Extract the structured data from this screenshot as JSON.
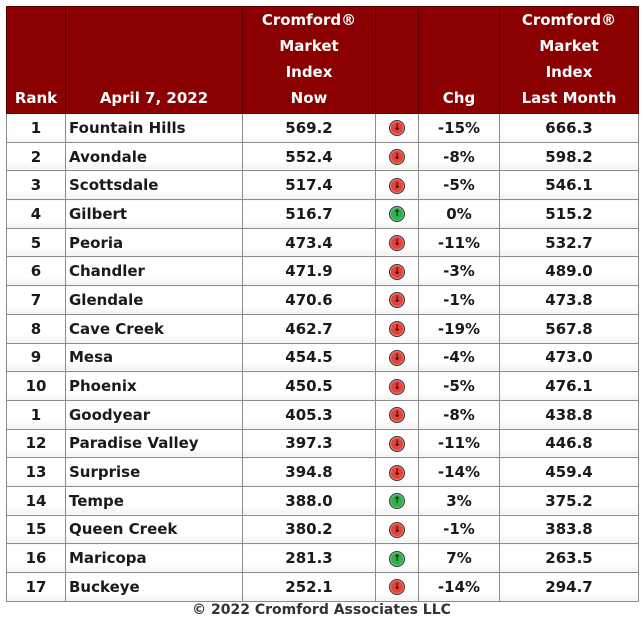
{
  "colors": {
    "header_bg": "#8b0000",
    "header_text": "#ffffff",
    "down_arrow": "#e8413a",
    "up_arrow": "#2eb04c"
  },
  "header": {
    "rank": "Rank",
    "date": "April 7, 2022",
    "index_now": [
      "Cromford®",
      "Market",
      "Index",
      "Now"
    ],
    "chg": "Chg",
    "index_last_month": [
      "Cromford®",
      "Market",
      "Index",
      "Last Month"
    ]
  },
  "rows": [
    {
      "rank": "1",
      "city": "Fountain Hills",
      "now": "569.2",
      "direction": "down",
      "icon": "down-arrow-icon",
      "chg": "-15%",
      "last": "666.3"
    },
    {
      "rank": "2",
      "city": "Avondale",
      "now": "552.4",
      "direction": "down",
      "icon": "down-arrow-icon",
      "chg": "-8%",
      "last": "598.2"
    },
    {
      "rank": "3",
      "city": "Scottsdale",
      "now": "517.4",
      "direction": "down",
      "icon": "down-arrow-icon",
      "chg": "-5%",
      "last": "546.1"
    },
    {
      "rank": "4",
      "city": "Gilbert",
      "now": "516.7",
      "direction": "up",
      "icon": "up-arrow-icon",
      "chg": "0%",
      "last": "515.2"
    },
    {
      "rank": "5",
      "city": "Peoria",
      "now": "473.4",
      "direction": "down",
      "icon": "down-arrow-icon",
      "chg": "-11%",
      "last": "532.7"
    },
    {
      "rank": "6",
      "city": "Chandler",
      "now": "471.9",
      "direction": "down",
      "icon": "down-arrow-icon",
      "chg": "-3%",
      "last": "489.0"
    },
    {
      "rank": "7",
      "city": "Glendale",
      "now": "470.6",
      "direction": "down",
      "icon": "down-arrow-icon",
      "chg": "-1%",
      "last": "473.8"
    },
    {
      "rank": "8",
      "city": "Cave Creek",
      "now": "462.7",
      "direction": "down",
      "icon": "down-arrow-icon",
      "chg": "-19%",
      "last": "567.8"
    },
    {
      "rank": "9",
      "city": "Mesa",
      "now": "454.5",
      "direction": "down",
      "icon": "down-arrow-icon",
      "chg": "-4%",
      "last": "473.0"
    },
    {
      "rank": "10",
      "city": "Phoenix",
      "now": "450.5",
      "direction": "down",
      "icon": "down-arrow-icon",
      "chg": "-5%",
      "last": "476.1"
    },
    {
      "rank": "1",
      "city": "Goodyear",
      "now": "405.3",
      "direction": "down",
      "icon": "down-arrow-icon",
      "chg": "-8%",
      "last": "438.8"
    },
    {
      "rank": "12",
      "city": "Paradise Valley",
      "now": "397.3",
      "direction": "down",
      "icon": "down-arrow-icon",
      "chg": "-11%",
      "last": "446.8"
    },
    {
      "rank": "13",
      "city": "Surprise",
      "now": "394.8",
      "direction": "down",
      "icon": "down-arrow-icon",
      "chg": "-14%",
      "last": "459.4"
    },
    {
      "rank": "14",
      "city": "Tempe",
      "now": "388.0",
      "direction": "up",
      "icon": "up-arrow-icon",
      "chg": "3%",
      "last": "375.2"
    },
    {
      "rank": "15",
      "city": "Queen Creek",
      "now": "380.2",
      "direction": "down",
      "icon": "down-arrow-icon",
      "chg": "-1%",
      "last": "383.8"
    },
    {
      "rank": "16",
      "city": "Maricopa",
      "now": "281.3",
      "direction": "up",
      "icon": "up-arrow-icon",
      "chg": "7%",
      "last": "263.5"
    },
    {
      "rank": "17",
      "city": "Buckeye",
      "now": "252.1",
      "direction": "down",
      "icon": "down-arrow-icon",
      "chg": "-14%",
      "last": "294.7"
    }
  ],
  "footer": "© 2022 Cromford Associates LLC"
}
